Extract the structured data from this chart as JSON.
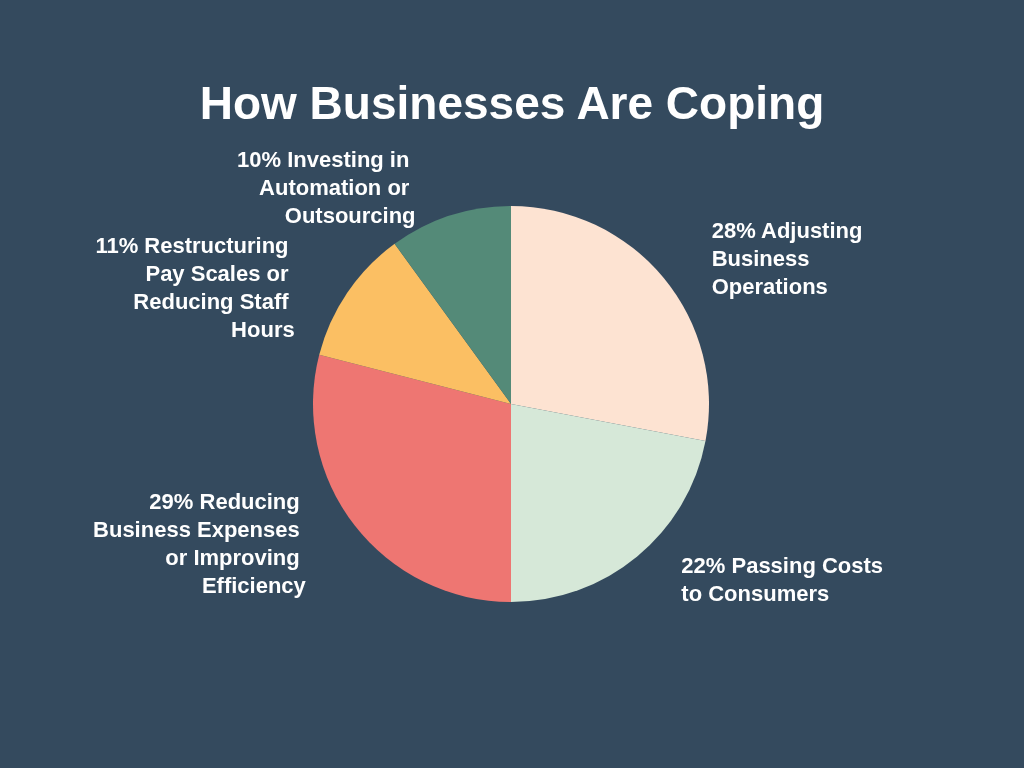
{
  "chart_data": {
    "type": "pie",
    "title": "How Businesses Are Coping",
    "categories": [
      "Adjusting Business Operations",
      "Passing Costs to Consumers",
      "Reducing Business Expenses or Improving Efficiency",
      "Restructuring Pay Scales or Reducing Staff Hours",
      "Investing in Automation or Outsourcing"
    ],
    "values": [
      28,
      22,
      29,
      11,
      10
    ],
    "value_labels": [
      "28%",
      "22%",
      "29%",
      "11%",
      "10%"
    ],
    "colors": [
      "#fde3d2",
      "#d6e8d8",
      "#ee7672",
      "#fbbf63",
      "#548a78"
    ]
  }
}
